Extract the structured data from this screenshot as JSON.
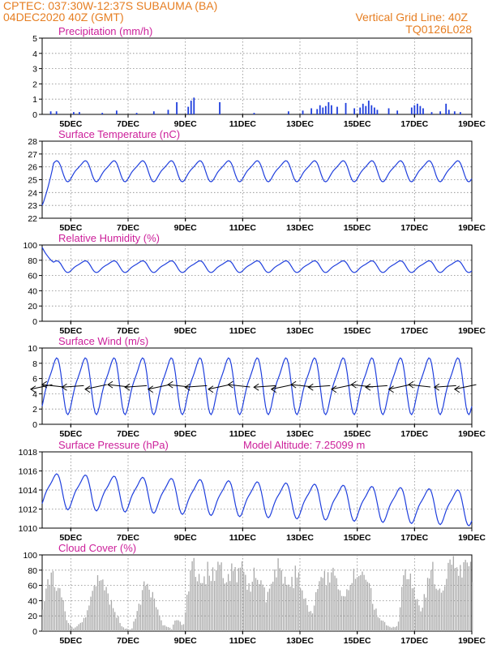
{
  "header": {
    "line1_left": "CPTEC:   037:30W-12:37S   SUBAUMA (BA)",
    "line2_left": "04DEC2020 40Z (GMT)",
    "line1_right": "Vertical Grid Line: 40Z",
    "line2_right": "TQ0126L028"
  },
  "colors": {
    "header": "#e67e22",
    "title": "#cc1f9a",
    "series": "#1f3fdd",
    "cloud": "#a9a9a9",
    "wind_arrow": "#000000"
  },
  "x_axis": {
    "range_days": [
      4,
      19
    ],
    "tick_labels": [
      "5DEC",
      "7DEC",
      "9DEC",
      "11DEC",
      "13DEC",
      "15DEC",
      "17DEC",
      "19DEC"
    ]
  },
  "chart_data": [
    {
      "type": "bar",
      "title": "Precipitation (mm/h)",
      "ylim": [
        0,
        5
      ],
      "y_ticks": [
        "0",
        "1",
        "2",
        "3",
        "4",
        "5"
      ],
      "x_days": [
        4.3,
        4.5,
        5.1,
        5.3,
        6.1,
        6.6,
        7.3,
        7.9,
        8.4,
        8.7,
        9.1,
        9.2,
        9.3,
        10.2,
        11.4,
        12.6,
        13.1,
        13.4,
        13.6,
        13.7,
        13.8,
        13.9,
        14.0,
        14.1,
        14.3,
        14.6,
        14.9,
        15.1,
        15.2,
        15.3,
        15.4,
        15.5,
        15.6,
        15.7,
        16.1,
        16.4,
        16.9,
        17.0,
        17.1,
        17.2,
        17.3,
        17.6,
        17.9,
        18.1,
        18.2,
        18.4,
        18.6
      ],
      "values": [
        0.2,
        0.2,
        0.15,
        0.15,
        0.1,
        0.25,
        0.1,
        0.2,
        0.3,
        0.8,
        0.5,
        0.9,
        1.1,
        0.8,
        0.1,
        0.2,
        0.25,
        0.4,
        0.35,
        0.6,
        0.45,
        0.55,
        0.8,
        0.6,
        0.5,
        0.75,
        0.4,
        0.45,
        0.7,
        0.55,
        0.9,
        0.6,
        0.45,
        0.3,
        0.4,
        0.25,
        0.45,
        0.6,
        0.7,
        0.55,
        0.4,
        0.15,
        0.2,
        0.7,
        0.3,
        0.2,
        0.15
      ]
    },
    {
      "type": "line",
      "title": "Surface Temperature (nC)",
      "ylim": [
        22,
        28
      ],
      "y_ticks": [
        "22",
        "23",
        "24",
        "25",
        "26",
        "27",
        "28"
      ],
      "mean": 25.7,
      "amplitude": 0.75,
      "start_value": 23.0
    },
    {
      "type": "line",
      "title": "Relative Humidity (%)",
      "ylim": [
        0,
        100
      ],
      "y_ticks": [
        "0",
        "20",
        "40",
        "60",
        "80",
        "100"
      ],
      "mean": 72,
      "amplitude": 7,
      "start_value": 97
    },
    {
      "type": "line",
      "title": "Surface Wind (m/s)",
      "ylim": [
        0,
        10
      ],
      "y_ticks": [
        "0",
        "2",
        "4",
        "6",
        "8",
        "10"
      ],
      "mean": 5.2,
      "amplitude": 3.4,
      "arrows_at_value": 5,
      "arrow_days": [
        4.1,
        4.5,
        5.2,
        6.0,
        6.8,
        7.4,
        8.2,
        8.9,
        9.5,
        10.3,
        11.0,
        11.9,
        12.5,
        13.2,
        13.8,
        14.6,
        15.3,
        15.8,
        16.6,
        17.3,
        18.2,
        18.9
      ]
    },
    {
      "type": "line",
      "title": "Surface Pressure (hPa)",
      "annotation": "Model Altitude: 7.25099 m",
      "ylim": [
        1010,
        1018
      ],
      "y_ticks": [
        "1010",
        "1012",
        "1014",
        "1016",
        "1018"
      ],
      "mean_start": 1014.0,
      "mean_end": 1012.2,
      "amplitude": 1.7
    },
    {
      "type": "area",
      "title": "Cloud Cover (%)",
      "ylim": [
        0,
        100
      ],
      "y_ticks": [
        "0",
        "20",
        "40",
        "60",
        "80",
        "100"
      ],
      "segments_day_pct": [
        [
          4.0,
          35
        ],
        [
          4.1,
          55
        ],
        [
          4.3,
          80
        ],
        [
          4.5,
          65
        ],
        [
          4.7,
          40
        ],
        [
          4.9,
          10
        ],
        [
          5.1,
          3
        ],
        [
          5.5,
          18
        ],
        [
          5.8,
          60
        ],
        [
          6.0,
          78
        ],
        [
          6.2,
          60
        ],
        [
          6.5,
          30
        ],
        [
          6.8,
          5
        ],
        [
          7.1,
          2
        ],
        [
          7.4,
          40
        ],
        [
          7.6,
          70
        ],
        [
          7.8,
          55
        ],
        [
          8.0,
          30
        ],
        [
          8.2,
          10
        ],
        [
          8.5,
          3
        ],
        [
          8.7,
          20
        ],
        [
          8.9,
          5
        ],
        [
          9.1,
          60
        ],
        [
          9.2,
          90
        ],
        [
          9.4,
          85
        ],
        [
          9.6,
          70
        ],
        [
          9.8,
          88
        ],
        [
          10.0,
          75
        ],
        [
          10.2,
          90
        ],
        [
          10.4,
          60
        ],
        [
          10.6,
          85
        ],
        [
          10.8,
          75
        ],
        [
          11.0,
          88
        ],
        [
          11.2,
          60
        ],
        [
          11.4,
          85
        ],
        [
          11.6,
          70
        ],
        [
          11.8,
          50
        ],
        [
          12.0,
          85
        ],
        [
          12.2,
          92
        ],
        [
          12.4,
          70
        ],
        [
          12.6,
          55
        ],
        [
          12.8,
          80
        ],
        [
          13.0,
          70
        ],
        [
          13.2,
          40
        ],
        [
          13.4,
          25
        ],
        [
          13.6,
          60
        ],
        [
          13.8,
          80
        ],
        [
          14.0,
          70
        ],
        [
          14.2,
          88
        ],
        [
          14.4,
          60
        ],
        [
          14.6,
          55
        ],
        [
          14.8,
          80
        ],
        [
          15.0,
          65
        ],
        [
          15.2,
          92
        ],
        [
          15.4,
          70
        ],
        [
          15.6,
          30
        ],
        [
          15.8,
          15
        ],
        [
          16.0,
          10
        ],
        [
          16.2,
          5
        ],
        [
          16.4,
          8
        ],
        [
          16.6,
          90
        ],
        [
          16.8,
          85
        ],
        [
          17.0,
          55
        ],
        [
          17.2,
          30
        ],
        [
          17.4,
          60
        ],
        [
          17.6,
          88
        ],
        [
          17.8,
          50
        ],
        [
          18.0,
          60
        ],
        [
          18.2,
          92
        ],
        [
          18.4,
          98
        ],
        [
          18.6,
          88
        ],
        [
          18.8,
          98
        ],
        [
          19.0,
          85
        ]
      ]
    }
  ]
}
